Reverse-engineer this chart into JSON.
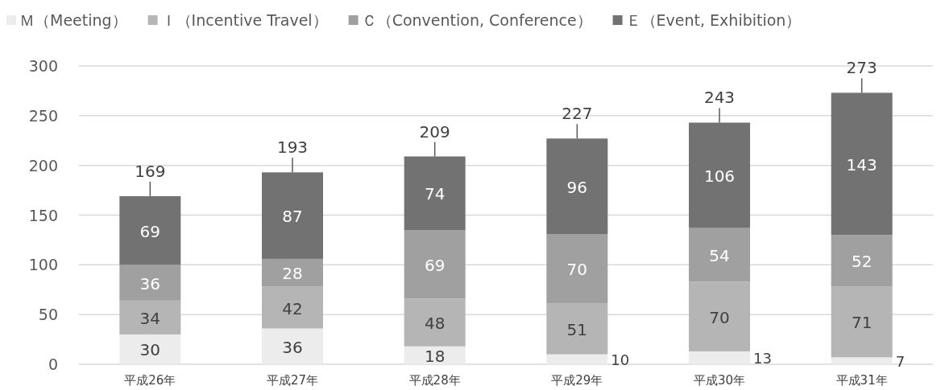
{
  "chart_data": {
    "type": "bar",
    "stacked": true,
    "data_labels": true,
    "grid": "y",
    "legend": "top",
    "categories": [
      "平成26年",
      "平成27年",
      "平成28年",
      "平成29年",
      "平成30年",
      "平成31年"
    ],
    "series": [
      {
        "name": "Ｍ（Meeting）",
        "color": "#ececec",
        "values": [
          30,
          36,
          18,
          10,
          13,
          7
        ]
      },
      {
        "name": "Ｉ（Incentive Travel）",
        "color": "#b5b5b5",
        "values": [
          34,
          42,
          48,
          51,
          70,
          71
        ]
      },
      {
        "name": "Ｃ（Convention, Conference）",
        "color": "#a0a0a0",
        "values": [
          36,
          28,
          69,
          70,
          54,
          52
        ]
      },
      {
        "name": "Ｅ（Event, Exhibition）",
        "color": "#727272",
        "values": [
          69,
          87,
          74,
          96,
          106,
          143
        ]
      }
    ],
    "totals": [
      "169",
      "193",
      "209",
      "227",
      "243",
      "273"
    ],
    "ylim": [
      0,
      300
    ],
    "yticks": [
      0,
      50,
      100,
      150,
      200,
      250,
      300
    ]
  }
}
